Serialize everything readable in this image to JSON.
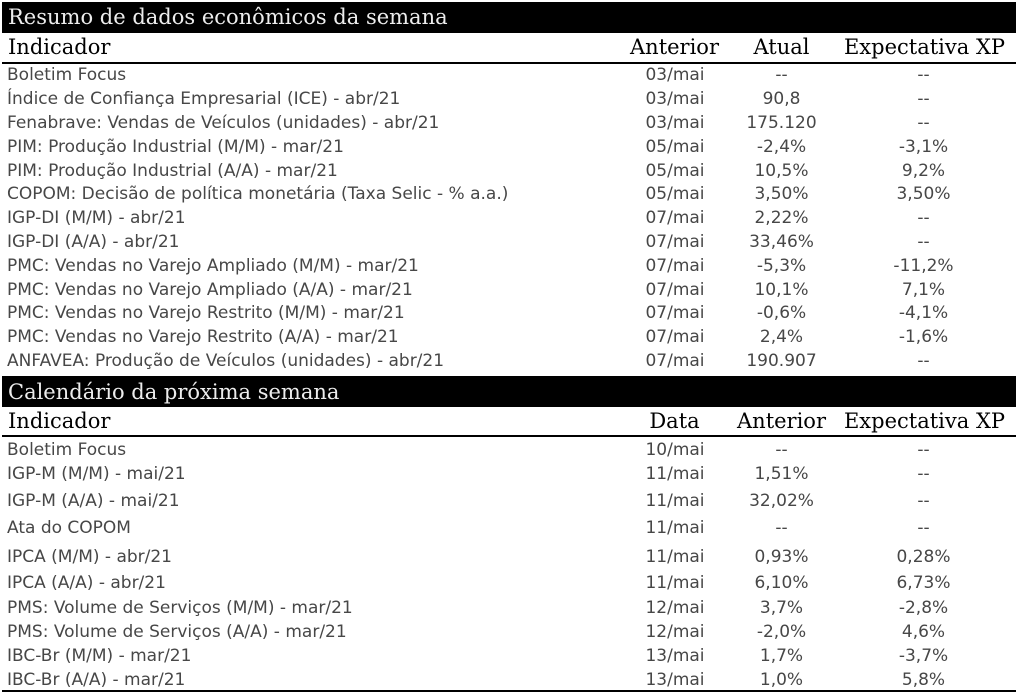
{
  "page": {
    "background_color": "#ffffff",
    "band_background_color": "#000000",
    "band_text_color": "#ededed",
    "header_text_color": "#000000",
    "body_text_color": "#474747",
    "empty_value_marker": "--"
  },
  "summary_section": {
    "title": "Resumo de dados econômicos da semana",
    "columns": [
      "Indicador",
      "Anterior",
      "Atual",
      "Expectativa XP"
    ],
    "rows": [
      {
        "indicator": "Boletim Focus",
        "col1": "03/mai",
        "col2": "--",
        "col3": "--"
      },
      {
        "indicator": "Índice de Confiança Empresarial (ICE) - abr/21",
        "col1": "03/mai",
        "col2": "90,8",
        "col3": "--"
      },
      {
        "indicator": "Fenabrave: Vendas de Veículos (unidades) - abr/21",
        "col1": "03/mai",
        "col2": "175.120",
        "col3": "--"
      },
      {
        "indicator": "PIM: Produção Industrial (M/M) - mar/21",
        "col1": "05/mai",
        "col2": "-2,4%",
        "col3": "-3,1%"
      },
      {
        "indicator": "PIM: Produção Industrial (A/A) - mar/21",
        "col1": "05/mai",
        "col2": "10,5%",
        "col3": "9,2%"
      },
      {
        "indicator": "COPOM: Decisão de política monetária (Taxa Selic - % a.a.)",
        "col1": "05/mai",
        "col2": "3,50%",
        "col3": "3,50%"
      },
      {
        "indicator": "IGP-DI (M/M) - abr/21",
        "col1": "07/mai",
        "col2": "2,22%",
        "col3": "--"
      },
      {
        "indicator": "IGP-DI (A/A) - abr/21",
        "col1": "07/mai",
        "col2": "33,46%",
        "col3": "--"
      },
      {
        "indicator": "PMC: Vendas no Varejo Ampliado (M/M) - mar/21",
        "col1": "07/mai",
        "col2": "-5,3%",
        "col3": "-11,2%"
      },
      {
        "indicator": "PMC: Vendas no Varejo Ampliado (A/A) - mar/21",
        "col1": "07/mai",
        "col2": "10,1%",
        "col3": "7,1%"
      },
      {
        "indicator": "PMC: Vendas no Varejo Restrito (M/M) - mar/21",
        "col1": "07/mai",
        "col2": "-0,6%",
        "col3": "-4,1%"
      },
      {
        "indicator": "PMC: Vendas no Varejo Restrito (A/A) - mar/21",
        "col1": "07/mai",
        "col2": "2,4%",
        "col3": "-1,6%"
      },
      {
        "indicator": "ANFAVEA: Produção de Veículos (unidades) - abr/21",
        "col1": "07/mai",
        "col2": "190.907",
        "col3": "--"
      }
    ]
  },
  "calendar_section": {
    "title": "Calendário da próxima semana",
    "columns": [
      "Indicador",
      "Data",
      "Anterior",
      "Expectativa XP"
    ],
    "rows": [
      {
        "indicator": "Boletim Focus",
        "col1": "10/mai",
        "col2": "--",
        "col3": "--"
      },
      {
        "indicator": "IGP-M (M/M) - mai/21",
        "col1": "11/mai",
        "col2": "1,51%",
        "col3": "--"
      },
      {
        "indicator": "IGP-M (A/A) - mai/21",
        "col1": "11/mai",
        "col2": "32,02%",
        "col3": "--"
      },
      {
        "indicator": "Ata do COPOM",
        "col1": "11/mai",
        "col2": "--",
        "col3": "--"
      },
      {
        "indicator": "IPCA (M/M) - abr/21",
        "col1": "11/mai",
        "col2": "0,93%",
        "col3": "0,28%"
      },
      {
        "indicator": "IPCA (A/A) - abr/21",
        "col1": "11/mai",
        "col2": "6,10%",
        "col3": "6,73%"
      },
      {
        "indicator": "PMS: Volume de Serviços (M/M) - mar/21",
        "col1": "12/mai",
        "col2": "3,7%",
        "col3": "-2,8%"
      },
      {
        "indicator": "PMS: Volume de Serviços (A/A) - mar/21",
        "col1": "12/mai",
        "col2": "-2,0%",
        "col3": "4,6%"
      },
      {
        "indicator": "IBC-Br (M/M) - mar/21",
        "col1": "13/mai",
        "col2": "1,7%",
        "col3": "-3,7%"
      },
      {
        "indicator": "IBC-Br (A/A) - mar/21",
        "col1": "13/mai",
        "col2": "1,0%",
        "col3": "5,8%"
      }
    ]
  },
  "chart_data": [
    {
      "type": "table",
      "title": "Resumo de dados econômicos da semana",
      "columns": [
        "Indicador",
        "Anterior",
        "Atual",
        "Expectativa XP"
      ],
      "rows": [
        [
          "Boletim Focus",
          "03/mai",
          "--",
          "--"
        ],
        [
          "Índice de Confiança Empresarial (ICE) - abr/21",
          "03/mai",
          "90,8",
          "--"
        ],
        [
          "Fenabrave: Vendas de Veículos (unidades) - abr/21",
          "03/mai",
          "175.120",
          "--"
        ],
        [
          "PIM: Produção Industrial (M/M) - mar/21",
          "05/mai",
          "-2,4%",
          "-3,1%"
        ],
        [
          "PIM: Produção Industrial (A/A) - mar/21",
          "05/mai",
          "10,5%",
          "9,2%"
        ],
        [
          "COPOM: Decisão de política monetária (Taxa Selic - % a.a.)",
          "05/mai",
          "3,50%",
          "3,50%"
        ],
        [
          "IGP-DI (M/M) - abr/21",
          "07/mai",
          "2,22%",
          "--"
        ],
        [
          "IGP-DI (A/A) - abr/21",
          "07/mai",
          "33,46%",
          "--"
        ],
        [
          "PMC: Vendas no Varejo Ampliado (M/M) - mar/21",
          "07/mai",
          "-5,3%",
          "-11,2%"
        ],
        [
          "PMC: Vendas no Varejo Ampliado (A/A) - mar/21",
          "07/mai",
          "10,1%",
          "7,1%"
        ],
        [
          "PMC: Vendas no Varejo Restrito (M/M) - mar/21",
          "07/mai",
          "-0,6%",
          "-4,1%"
        ],
        [
          "PMC: Vendas no Varejo Restrito (A/A) - mar/21",
          "07/mai",
          "2,4%",
          "-1,6%"
        ],
        [
          "ANFAVEA: Produção de Veículos (unidades) - abr/21",
          "07/mai",
          "190.907",
          "--"
        ]
      ]
    },
    {
      "type": "table",
      "title": "Calendário da próxima semana",
      "columns": [
        "Indicador",
        "Data",
        "Anterior",
        "Expectativa XP"
      ],
      "rows": [
        [
          "Boletim Focus",
          "10/mai",
          "--",
          "--"
        ],
        [
          "IGP-M (M/M) - mai/21",
          "11/mai",
          "1,51%",
          "--"
        ],
        [
          "IGP-M (A/A) - mai/21",
          "11/mai",
          "32,02%",
          "--"
        ],
        [
          "Ata do COPOM",
          "11/mai",
          "--",
          "--"
        ],
        [
          "IPCA (M/M) - abr/21",
          "11/mai",
          "0,93%",
          "0,28%"
        ],
        [
          "IPCA (A/A) - abr/21",
          "11/mai",
          "6,10%",
          "6,73%"
        ],
        [
          "PMS: Volume de Serviços (M/M) - mar/21",
          "12/mai",
          "3,7%",
          "-2,8%"
        ],
        [
          "PMS: Volume de Serviços (A/A) - mar/21",
          "12/mai",
          "-2,0%",
          "4,6%"
        ],
        [
          "IBC-Br (M/M) - mar/21",
          "13/mai",
          "1,7%",
          "-3,7%"
        ],
        [
          "IBC-Br (A/A) - mar/21",
          "13/mai",
          "1,0%",
          "5,8%"
        ]
      ]
    }
  ]
}
